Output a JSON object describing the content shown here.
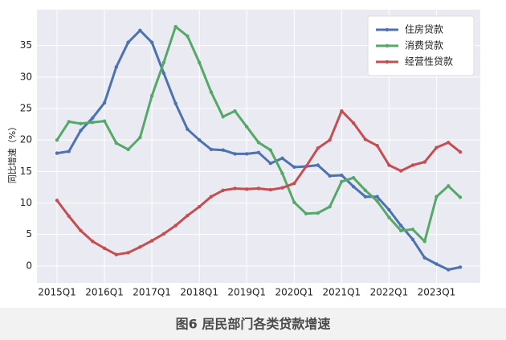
{
  "chart_data": {
    "type": "line",
    "caption": "图6  居民部门各类贷款增速",
    "y_label": "同比增速（%）",
    "categories": [
      "2015Q1",
      null,
      null,
      null,
      "2016Q1",
      null,
      null,
      null,
      "2017Q1",
      null,
      null,
      null,
      "2018Q1",
      null,
      null,
      null,
      "2019Q1",
      null,
      null,
      null,
      "2020Q1",
      null,
      null,
      null,
      "2021Q1",
      null,
      null,
      null,
      "2022Q1",
      null,
      null,
      null,
      "2023Q1",
      null,
      null
    ],
    "series": [
      {
        "name": "住房贷款",
        "color": "#4c72b0",
        "values": [
          17.9,
          18.2,
          21.5,
          23.5,
          25.9,
          31.6,
          35.5,
          37.4,
          35.5,
          30.6,
          25.8,
          21.7,
          20.0,
          18.5,
          18.4,
          17.8,
          17.8,
          18.0,
          16.3,
          17.1,
          15.7,
          15.8,
          16.0,
          14.3,
          14.4,
          12.6,
          11.0,
          11.0,
          8.9,
          6.4,
          4.2,
          1.3,
          0.3,
          -0.6,
          -0.2
        ]
      },
      {
        "name": "消费贷款",
        "color": "#55a868",
        "values": [
          20.0,
          22.9,
          22.6,
          22.8,
          23.0,
          19.5,
          18.5,
          20.4,
          27.0,
          32.3,
          38.0,
          36.5,
          32.3,
          27.6,
          23.7,
          24.6,
          22.1,
          19.6,
          18.4,
          14.7,
          10.1,
          8.3,
          8.4,
          9.4,
          13.4,
          14.0,
          12.0,
          10.3,
          7.7,
          5.6,
          5.8,
          3.9,
          11.0,
          12.7,
          10.9
        ]
      },
      {
        "name": "经营性贷款",
        "color": "#c44e52",
        "values": [
          10.4,
          7.9,
          5.6,
          3.9,
          2.8,
          1.8,
          2.1,
          3.0,
          4.0,
          5.1,
          6.4,
          8.0,
          9.4,
          11.0,
          12.0,
          12.3,
          12.2,
          12.3,
          12.1,
          12.4,
          13.1,
          15.8,
          18.7,
          20.0,
          24.6,
          22.7,
          20.1,
          19.1,
          16.0,
          15.1,
          16.0,
          16.5,
          18.8,
          19.6,
          18.1
        ]
      }
    ],
    "ylim": [
      -2.7,
      40.7
    ],
    "yticks": [
      0,
      5,
      10,
      15,
      20,
      25,
      30,
      35
    ],
    "grid": true,
    "legend": "upper right"
  }
}
